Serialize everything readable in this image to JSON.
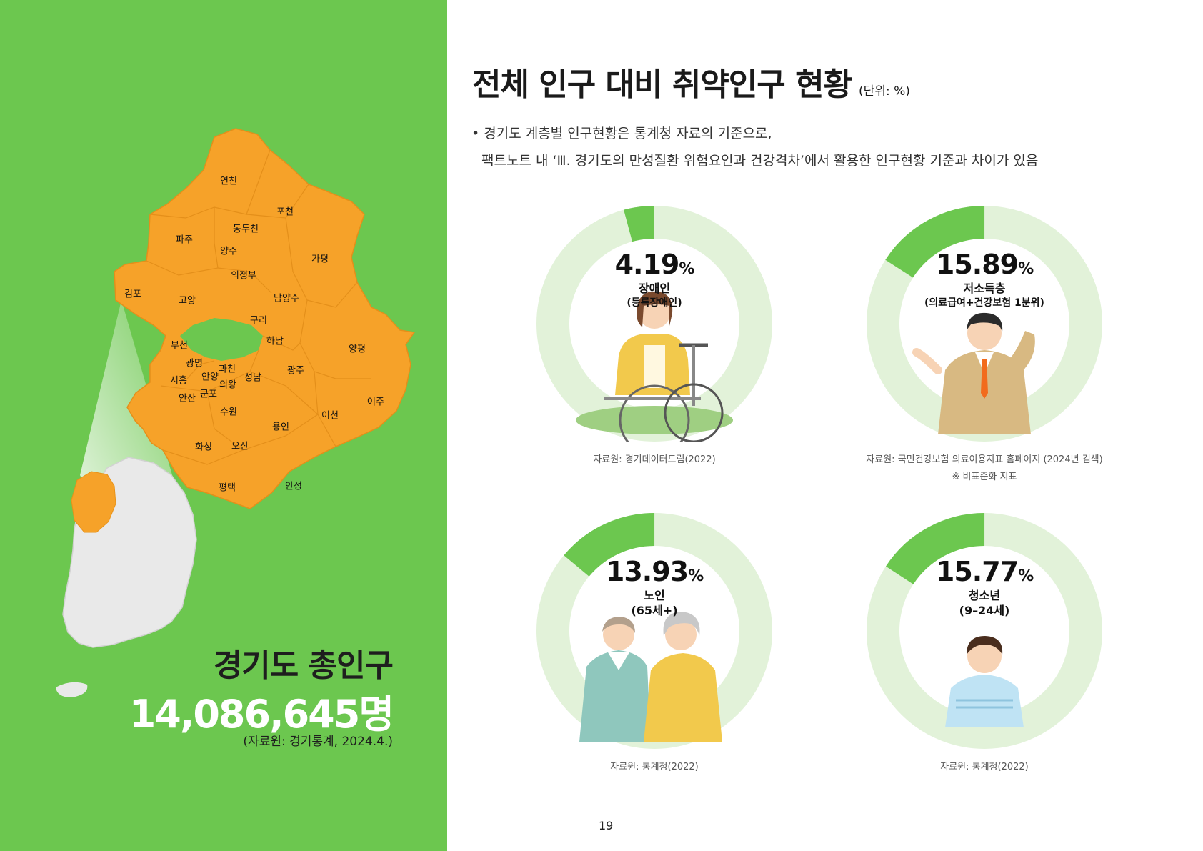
{
  "left_panel": {
    "total_title": "경기도 총인구",
    "total_value": "14,086,645명",
    "total_source": "(자료원: 경기통계, 2024.4.)",
    "regions": [
      {
        "id": "yeoncheon",
        "name": "연천"
      },
      {
        "id": "pocheon",
        "name": "포천"
      },
      {
        "id": "dongducheon",
        "name": "동두천"
      },
      {
        "id": "paju",
        "name": "파주"
      },
      {
        "id": "yangju",
        "name": "양주"
      },
      {
        "id": "gapyeong",
        "name": "가평"
      },
      {
        "id": "uijeongbu",
        "name": "의정부"
      },
      {
        "id": "gimpo",
        "name": "김포"
      },
      {
        "id": "goyang",
        "name": "고양"
      },
      {
        "id": "namyangju",
        "name": "남양주"
      },
      {
        "id": "guri",
        "name": "구리"
      },
      {
        "id": "bucheon",
        "name": "부천"
      },
      {
        "id": "hanam",
        "name": "하남"
      },
      {
        "id": "yangpyeong",
        "name": "양평"
      },
      {
        "id": "gwangmyeong",
        "name": "광명"
      },
      {
        "id": "gwacheon",
        "name": "과천"
      },
      {
        "id": "siheung",
        "name": "시흥"
      },
      {
        "id": "anyang",
        "name": "안양"
      },
      {
        "id": "uiwang",
        "name": "의왕"
      },
      {
        "id": "seongnam",
        "name": "성남"
      },
      {
        "id": "gwangju",
        "name": "광주"
      },
      {
        "id": "ansan",
        "name": "안산"
      },
      {
        "id": "gunpo",
        "name": "군포"
      },
      {
        "id": "yeoju",
        "name": "여주"
      },
      {
        "id": "suwon",
        "name": "수원"
      },
      {
        "id": "icheon",
        "name": "이천"
      },
      {
        "id": "yongin",
        "name": "용인"
      },
      {
        "id": "hwaseong",
        "name": "화성"
      },
      {
        "id": "osan",
        "name": "오산"
      },
      {
        "id": "pyeongtaek",
        "name": "평택"
      },
      {
        "id": "anseong",
        "name": "안성"
      }
    ]
  },
  "right_panel": {
    "title": "전체 인구 대비 취약인구 현황",
    "unit": "(단위: %)",
    "note_line1": "• 경기도 계층별 인구현황은 통계청 자료의 기준으로,",
    "note_line2": "팩트노트 내 ‘Ⅲ. 경기도의 만성질환 위험요인과 건강격차’에서 활용한 인구현황 기준과 차이가 있음",
    "stats": [
      {
        "value": "4.19",
        "sign": "%",
        "label1": "장애인",
        "label2": "(등록장애인)",
        "source1": "자료원: 경기데이터드림(2022)",
        "source2": "",
        "percent": 4.19
      },
      {
        "value": "15.89",
        "sign": "%",
        "label1": "저소득층",
        "label2": "(의료급여+건강보험 1분위)",
        "source1": "자료원: 국민건강보험 의료이용지표 홈페이지 (2024년 검색)",
        "source2": "※ 비표준화 지표",
        "percent": 15.89
      },
      {
        "value": "13.93",
        "sign": "%",
        "label1": "노인",
        "label2": "(65세+)",
        "source1": "자료원: 통계청(2022)",
        "source2": "",
        "percent": 13.93
      },
      {
        "value": "15.77",
        "sign": "%",
        "label1": "청소년",
        "label2": "(9–24세)",
        "source1": "자료원: 통계청(2022)",
        "source2": "",
        "percent": 15.77
      }
    ],
    "page_number": "19"
  },
  "colors": {
    "green": "#6cc74f",
    "orange": "#f6a229",
    "light_green": "#e2f2d9",
    "donut_fill": "#6cc74f"
  }
}
